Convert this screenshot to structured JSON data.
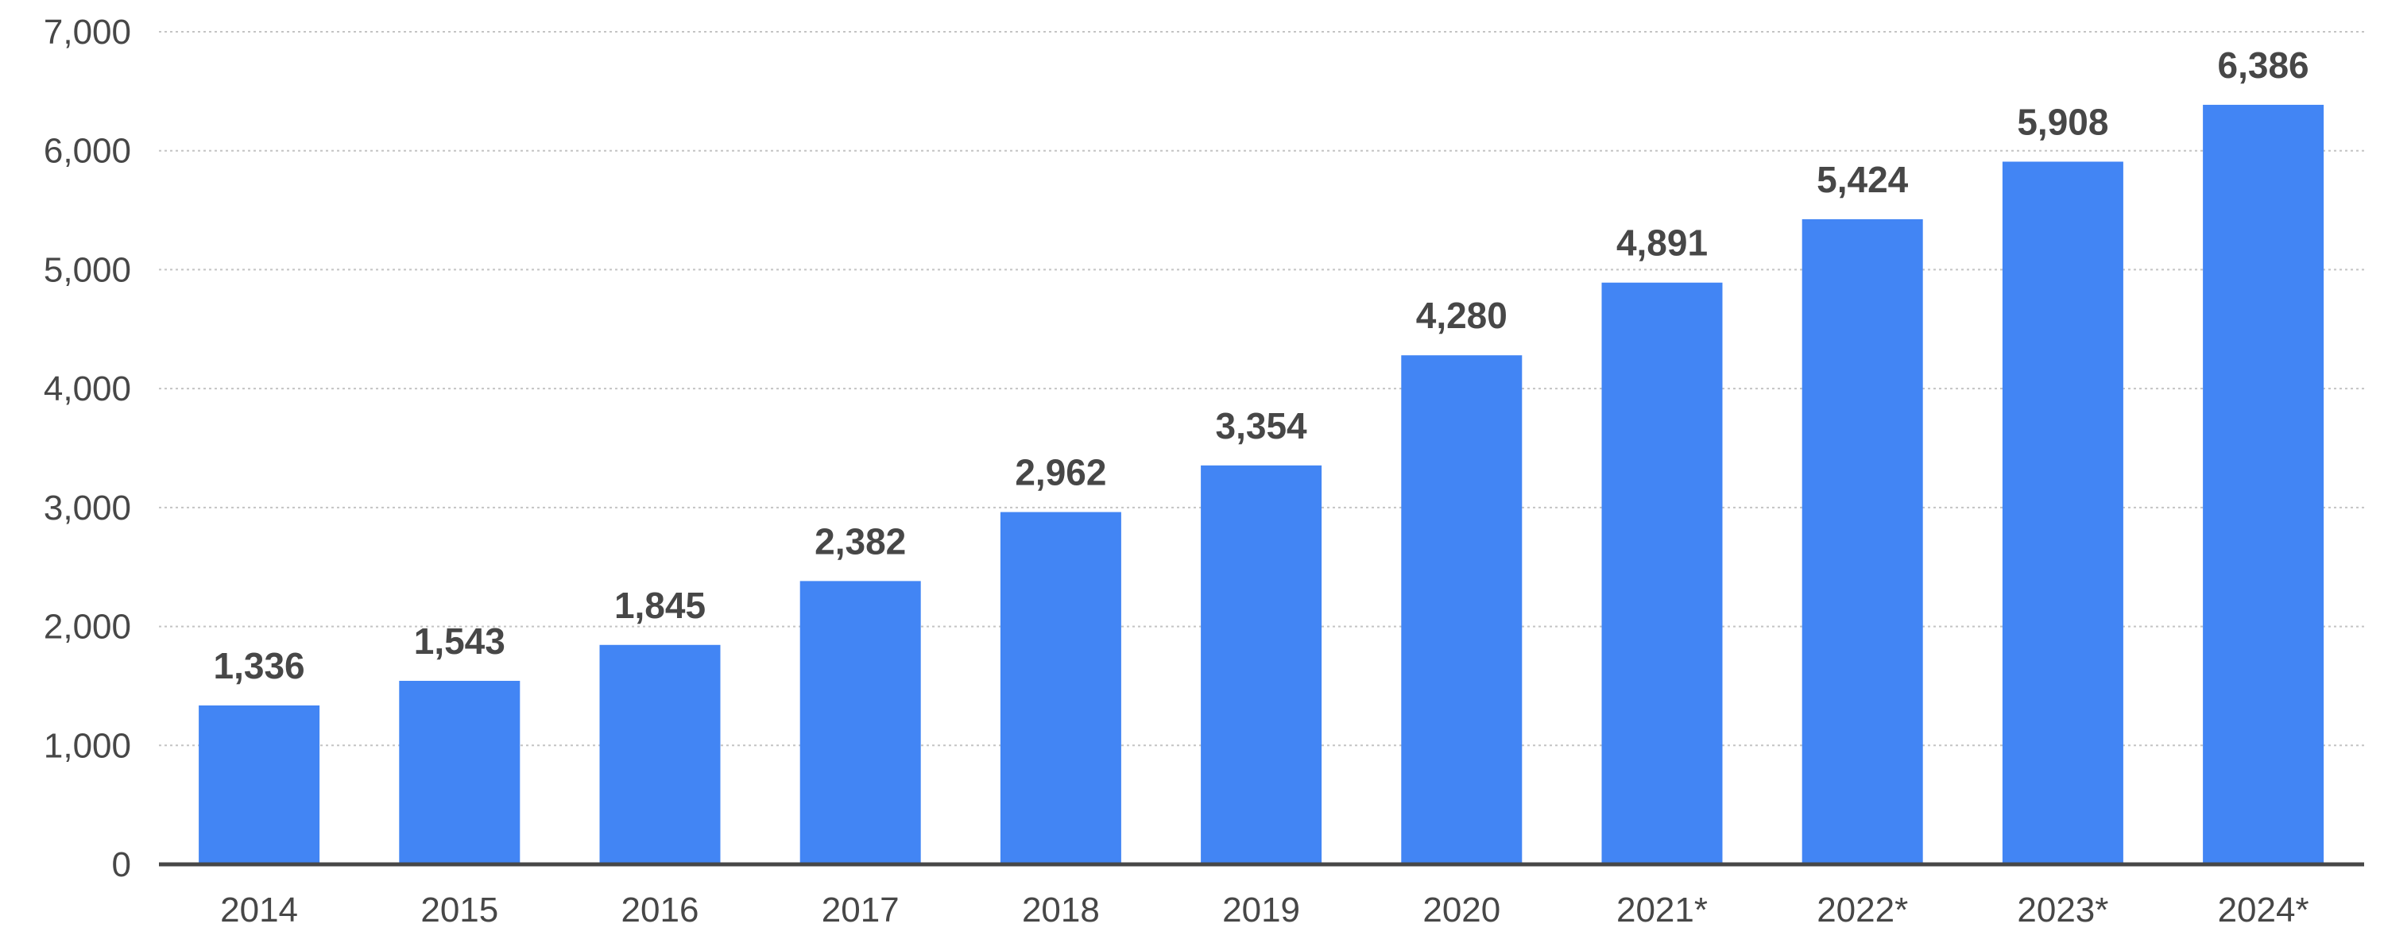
{
  "chart_data": {
    "type": "bar",
    "categories": [
      "2014",
      "2015",
      "2016",
      "2017",
      "2018",
      "2019",
      "2020",
      "2021*",
      "2022*",
      "2023*",
      "2024*"
    ],
    "values": [
      1336,
      1543,
      1845,
      2382,
      2962,
      3354,
      4280,
      4891,
      5424,
      5908,
      6386
    ],
    "data_labels": [
      "1,336",
      "1,543",
      "1,845",
      "2,382",
      "2,962",
      "3,354",
      "4,280",
      "4,891",
      "5,424",
      "5,908",
      "6,386"
    ],
    "ylim": [
      0,
      7000
    ],
    "yticks": [
      0,
      1000,
      2000,
      3000,
      4000,
      5000,
      6000,
      7000
    ],
    "ytick_labels": [
      "0",
      "1,000",
      "2,000",
      "3,000",
      "4,000",
      "5,000",
      "6,000",
      "7,000"
    ],
    "title": "",
    "xlabel": "",
    "ylabel": "",
    "grid": true,
    "legend": false,
    "bar_color": "#4285f4",
    "text_color": "#474747"
  }
}
